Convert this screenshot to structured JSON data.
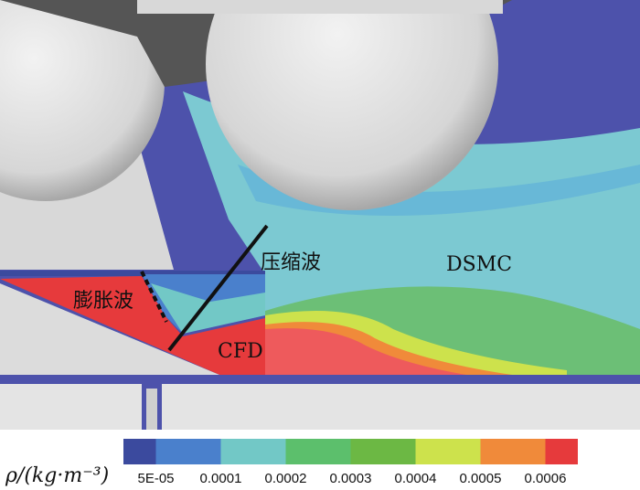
{
  "annotations": {
    "expansion": "膨胀波",
    "compression": "压缩波",
    "cfd": "CFD",
    "dsmc": "DSMC"
  },
  "colorbar": {
    "label": "ρ/(kg·m⁻³)",
    "ticks": [
      "5E-05",
      "0.0001",
      "0.0002",
      "0.0003",
      "0.0004",
      "0.0005",
      "0.0006"
    ],
    "colors": [
      "#3b4a9e",
      "#4a80cc",
      "#72c8c6",
      "#5cbf6c",
      "#6cb844",
      "#cde24c",
      "#f08a3a",
      "#e63a3c"
    ]
  }
}
